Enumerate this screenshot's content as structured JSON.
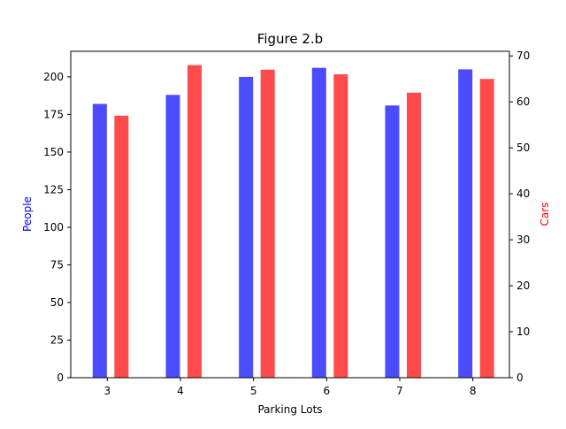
{
  "chart_data": {
    "type": "bar",
    "title": "Figure 2.b",
    "xlabel": "Parking Lots",
    "ylabel_left": "People",
    "ylabel_right": "Cars",
    "categories": [
      "3",
      "4",
      "5",
      "6",
      "7",
      "8"
    ],
    "xlim": [
      2.5,
      8.5
    ],
    "ylim_left": [
      0,
      217
    ],
    "ylim_right": [
      0,
      71
    ],
    "yticks_left": [
      0,
      25,
      50,
      75,
      100,
      125,
      150,
      175,
      200
    ],
    "yticks_right": [
      0,
      10,
      20,
      30,
      40,
      50,
      60,
      70
    ],
    "grid": false,
    "series": [
      {
        "axis": "left",
        "color": "#4b4bff",
        "values": [
          182,
          188,
          200,
          206,
          181,
          205
        ]
      },
      {
        "axis": "right",
        "color": "#ff4b4b",
        "values": [
          57,
          68,
          67,
          66,
          62,
          65
        ]
      }
    ],
    "colors": {
      "left_label": "#0000ff",
      "right_label": "#ff0000"
    }
  }
}
